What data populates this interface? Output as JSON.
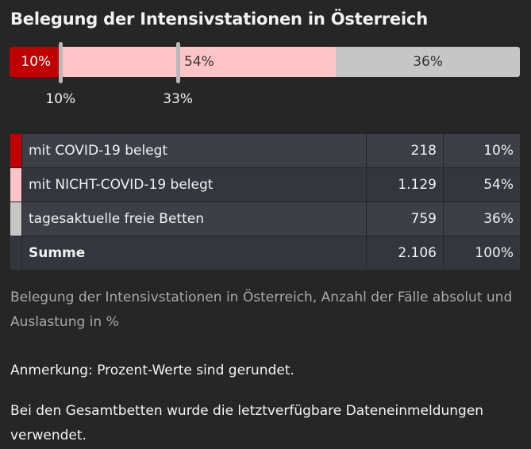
{
  "chart_data": {
    "type": "bar",
    "title": "Belegung der Intensivstationen in Österreich",
    "categories": [
      "mit COVID-19 belegt",
      "mit NICHT-COVID-19 belegt",
      "tagesaktuelle freie Betten"
    ],
    "values": [
      218,
      1129,
      759
    ],
    "percent": [
      10,
      54,
      36
    ],
    "colors": [
      "#c00000",
      "#ffc4c8",
      "#c6c6c6"
    ],
    "bar_labels": [
      "10%",
      "54%",
      "36%"
    ],
    "markers": [
      {
        "value": 10,
        "label": "10%"
      },
      {
        "value": 33,
        "label": "33%"
      }
    ]
  },
  "table": {
    "rows": [
      {
        "label": "mit COVID-19 belegt",
        "absolute": "218",
        "percent": "10%",
        "color": "#c00000"
      },
      {
        "label": "mit NICHT-COVID-19 belegt",
        "absolute": "1.129",
        "percent": "54%",
        "color": "#ffc4c8"
      },
      {
        "label": "tagesaktuelle freie Betten",
        "absolute": "759",
        "percent": "36%",
        "color": "#c6c6c6"
      }
    ],
    "sum": {
      "label": "Summe",
      "absolute": "2.106",
      "percent": "100%"
    }
  },
  "caption": "Belegung der Intensivstationen in Österreich, Anzahl der Fälle absolut und Auslastung in %",
  "notes": [
    "Anmerkung: Prozent-Werte sind gerundet.",
    "Bei den Gesamtbetten wurde die letztverfügbare Dateneinmeldungen verwendet."
  ]
}
